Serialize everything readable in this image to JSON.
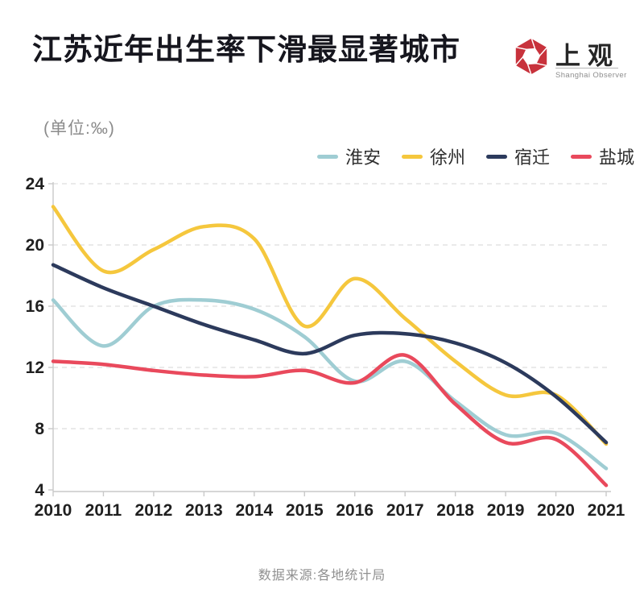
{
  "page": {
    "title": "江苏近年出生率下滑最显著城市",
    "unit_label": "(单位:‰)",
    "source": "数据来源:各地统计局"
  },
  "logo": {
    "wordmark": "上观",
    "subtitle": "Shanghai Observer",
    "brand_color": "#c8323c"
  },
  "chart_data": {
    "type": "line",
    "title": "江苏近年出生率下滑最显著城市",
    "unit": "‰",
    "x": [
      2010,
      2011,
      2012,
      2013,
      2014,
      2015,
      2016,
      2017,
      2018,
      2019,
      2020,
      2021
    ],
    "series": [
      {
        "name": "淮安",
        "color": "#9fcdd3",
        "values": [
          16.4,
          13.4,
          16.0,
          16.4,
          15.8,
          14.0,
          11.1,
          12.4,
          9.8,
          7.6,
          7.7,
          5.4
        ]
      },
      {
        "name": "徐州",
        "color": "#f5c73d",
        "values": [
          22.5,
          18.3,
          19.7,
          21.2,
          20.4,
          14.7,
          17.8,
          15.2,
          12.4,
          10.2,
          10.2,
          7.0
        ]
      },
      {
        "name": "宿迁",
        "color": "#2c3a5c",
        "values": [
          18.7,
          17.2,
          16.0,
          14.8,
          13.8,
          12.9,
          14.1,
          14.2,
          13.6,
          12.3,
          10.1,
          7.1
        ]
      },
      {
        "name": "盐城",
        "color": "#e9495c",
        "values": [
          12.4,
          12.2,
          11.8,
          11.5,
          11.4,
          11.8,
          11.0,
          12.8,
          9.6,
          7.1,
          7.3,
          4.3
        ]
      }
    ],
    "ylim": [
      4,
      24
    ],
    "yticks": [
      4,
      8,
      12,
      16,
      20,
      24
    ],
    "xlabel": "",
    "ylabel": "",
    "grid": true,
    "smooth": true,
    "legend_position": "top-right"
  }
}
